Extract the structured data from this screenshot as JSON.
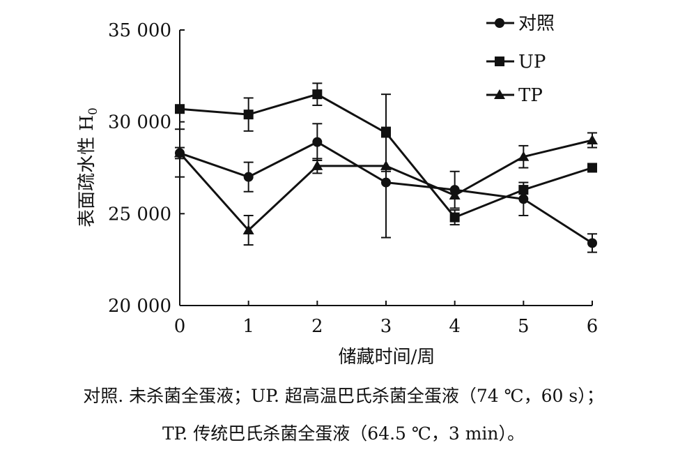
{
  "chart_data": {
    "type": "line",
    "title": "",
    "xlabel": "储藏时间/周",
    "ylabel": "表面疏水性 H",
    "ylabel_subscript": "0",
    "x": [
      0,
      1,
      2,
      3,
      4,
      5,
      6
    ],
    "xlim": [
      0,
      6
    ],
    "ylim": [
      20000,
      35000
    ],
    "yticks": [
      20000,
      25000,
      30000,
      35000
    ],
    "ytick_labels": [
      "20 000",
      "25 000",
      "30 000",
      "35 000"
    ],
    "xtick_labels": [
      "0",
      "1",
      "2",
      "3",
      "4",
      "5",
      "6"
    ],
    "grid": false,
    "legend_position": "top-right",
    "series": [
      {
        "name": "对照",
        "marker": "circle",
        "values": [
          28300,
          27000,
          28900,
          26700,
          26300,
          25800,
          23400
        ],
        "errors": [
          300,
          800,
          1000,
          3000,
          1000,
          900,
          500
        ]
      },
      {
        "name": "UP",
        "marker": "square",
        "values": [
          30700,
          30400,
          31500,
          29400,
          24800,
          26300,
          27500
        ],
        "errors": [
          0,
          900,
          600,
          2100,
          400,
          0,
          200
        ]
      },
      {
        "name": "TP",
        "marker": "triangle",
        "values": [
          28300,
          24100,
          27600,
          27600,
          26000,
          28100,
          29000
        ],
        "errors": [
          1300,
          800,
          400,
          0,
          0,
          600,
          400
        ]
      }
    ]
  },
  "caption": {
    "line1": "对照. 未杀菌全蛋液；UP. 超高温巴氏杀菌全蛋液（74 ℃，60 s）；",
    "line2": "TP. 传统巴氏杀菌全蛋液（64.5 ℃，3 min）。"
  }
}
